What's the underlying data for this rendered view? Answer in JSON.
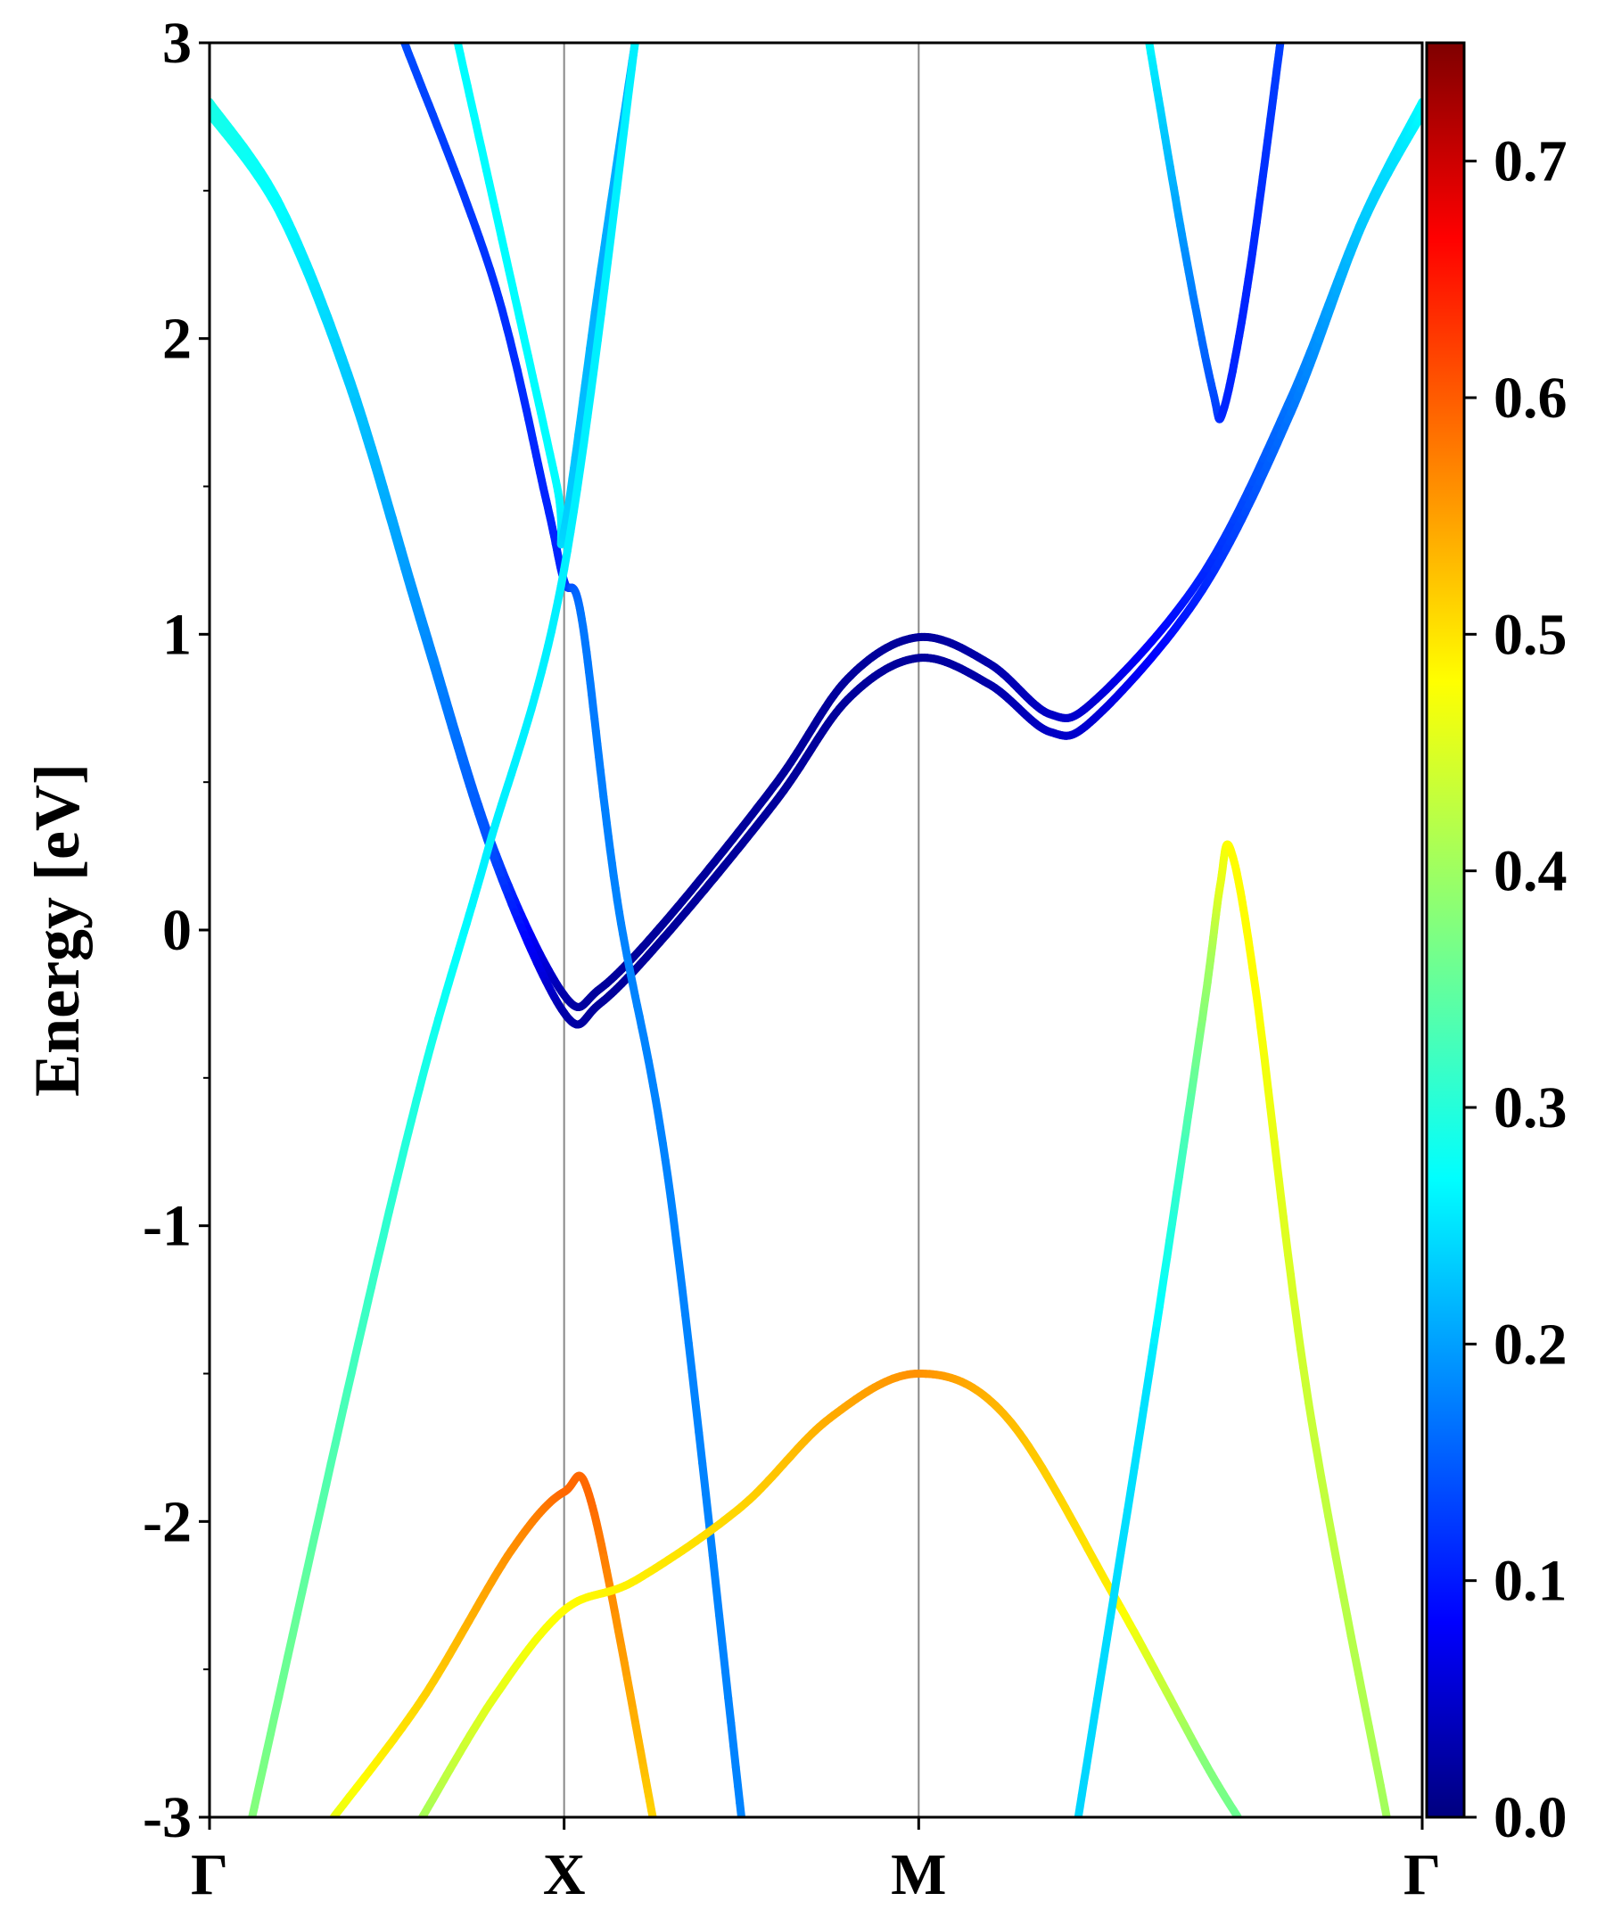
{
  "chart_data": {
    "type": "line",
    "title": "",
    "xlabel": "",
    "ylabel": "Energy [eV]",
    "ylim": [
      -3,
      3
    ],
    "kpoint_labels": [
      "Γ",
      "X",
      "M",
      "Γ"
    ],
    "kpoint_positions": [
      0,
      1,
      2,
      3.42
    ],
    "yticks": [
      "3",
      "2",
      "1",
      "0",
      "-1",
      "-2",
      "-3"
    ],
    "yticks_values": [
      3,
      2,
      1,
      0,
      -1,
      -2,
      -3
    ],
    "colorbar": {
      "colormap": "jet",
      "range": [
        0.0,
        0.75
      ],
      "ticks": [
        "0.0",
        "0.1",
        "0.2",
        "0.3",
        "0.4",
        "0.5",
        "0.6",
        "0.7"
      ],
      "tick_values": [
        0.0,
        0.1,
        0.2,
        0.3,
        0.4,
        0.5,
        0.6,
        0.7
      ]
    },
    "grid": false,
    "series": [
      {
        "points": [
          [
            0,
            2.8
          ],
          [
            0.2,
            2.45
          ],
          [
            0.4,
            1.85
          ],
          [
            0.6,
            1.05
          ],
          [
            0.8,
            0.28
          ],
          [
            1.0,
            -0.22
          ],
          [
            1.1,
            -0.2
          ],
          [
            1.3,
            0.05
          ],
          [
            1.6,
            0.5
          ],
          [
            1.8,
            0.85
          ],
          [
            2.0,
            0.99
          ],
          [
            2.2,
            0.9
          ],
          [
            2.37,
            0.73
          ],
          [
            2.5,
            0.78
          ],
          [
            2.8,
            1.2
          ],
          [
            3.05,
            1.8
          ],
          [
            3.25,
            2.4
          ],
          [
            3.42,
            2.8
          ]
        ],
        "weights": [
          0.3,
          0.28,
          0.24,
          0.2,
          0.15,
          0.03,
          0.02,
          0.02,
          0.02,
          0.02,
          0.02,
          0.03,
          0.05,
          0.06,
          0.12,
          0.18,
          0.24,
          0.28
        ]
      },
      {
        "points": [
          [
            0,
            2.76
          ],
          [
            0.2,
            2.42
          ],
          [
            0.4,
            1.82
          ],
          [
            0.6,
            1.02
          ],
          [
            0.8,
            0.25
          ],
          [
            1.0,
            -0.28
          ],
          [
            1.1,
            -0.25
          ],
          [
            1.3,
            0.0
          ],
          [
            1.6,
            0.44
          ],
          [
            1.8,
            0.78
          ],
          [
            2.0,
            0.92
          ],
          [
            2.2,
            0.83
          ],
          [
            2.37,
            0.67
          ],
          [
            2.5,
            0.72
          ],
          [
            2.8,
            1.15
          ],
          [
            3.05,
            1.75
          ],
          [
            3.25,
            2.38
          ],
          [
            3.42,
            2.76
          ]
        ],
        "weights": [
          0.3,
          0.28,
          0.24,
          0.2,
          0.15,
          0.03,
          0.02,
          0.02,
          0.02,
          0.02,
          0.02,
          0.03,
          0.05,
          0.06,
          0.12,
          0.18,
          0.24,
          0.28
        ]
      },
      {
        "points": [
          [
            0.55,
            3.0
          ],
          [
            0.8,
            2.2
          ],
          [
            0.95,
            1.45
          ],
          [
            1.0,
            1.18
          ],
          [
            1.05,
            1.05
          ],
          [
            1.15,
            0.1
          ],
          [
            1.3,
            -0.9
          ],
          [
            1.5,
            -3.0
          ]
        ],
        "weights": [
          0.15,
          0.13,
          0.12,
          0.12,
          0.18,
          0.19,
          0.19,
          0.19
        ]
      },
      {
        "points": [
          [
            0.7,
            3.0
          ],
          [
            0.85,
            2.2
          ],
          [
            0.98,
            1.5
          ],
          [
            1.0,
            1.35
          ],
          [
            1.1,
            2.2
          ],
          [
            1.2,
            3.0
          ]
        ],
        "weights": [
          0.28,
          0.28,
          0.28,
          0.25,
          0.22,
          0.22
        ]
      },
      {
        "points": [
          [
            0.12,
            -3.0
          ],
          [
            0.4,
            -1.5
          ],
          [
            0.6,
            -0.5
          ],
          [
            0.78,
            0.25
          ],
          [
            1.0,
            1.22
          ],
          [
            1.2,
            3.0
          ]
        ],
        "weights": [
          0.38,
          0.33,
          0.3,
          0.27,
          0.27,
          0.27
        ]
      },
      {
        "points": [
          [
            0.35,
            -3.0
          ],
          [
            0.6,
            -2.6
          ],
          [
            0.85,
            -2.1
          ],
          [
            1.0,
            -1.9
          ],
          [
            1.08,
            -1.95
          ],
          [
            1.25,
            -3.0
          ]
        ],
        "weights": [
          0.45,
          0.5,
          0.55,
          0.58,
          0.58,
          0.5
        ]
      },
      {
        "points": [
          [
            0.6,
            -3.0
          ],
          [
            0.8,
            -2.6
          ],
          [
            1.0,
            -2.3
          ],
          [
            1.2,
            -2.2
          ],
          [
            1.5,
            -1.95
          ],
          [
            1.75,
            -1.65
          ],
          [
            2.0,
            -1.5
          ],
          [
            2.25,
            -1.65
          ],
          [
            2.55,
            -2.25
          ],
          [
            2.8,
            -2.8
          ],
          [
            2.9,
            -3.0
          ]
        ],
        "weights": [
          0.4,
          0.45,
          0.47,
          0.48,
          0.5,
          0.53,
          0.55,
          0.52,
          0.48,
          0.38,
          0.36
        ]
      },
      {
        "points": [
          [
            2.45,
            -3.0
          ],
          [
            2.65,
            -1.5
          ],
          [
            2.8,
            -0.3
          ],
          [
            2.85,
            0.15
          ],
          [
            2.88,
            0.27
          ],
          [
            2.95,
            -0.2
          ],
          [
            3.1,
            -1.6
          ],
          [
            3.32,
            -3.0
          ]
        ],
        "weights": [
          0.25,
          0.26,
          0.38,
          0.45,
          0.47,
          0.47,
          0.43,
          0.4
        ]
      },
      {
        "points": [
          [
            2.65,
            3.0
          ],
          [
            2.75,
            2.3
          ],
          [
            2.83,
            1.82
          ],
          [
            2.86,
            1.76
          ],
          [
            2.93,
            2.2
          ],
          [
            3.02,
            3.0
          ]
        ],
        "weights": [
          0.28,
          0.2,
          0.15,
          0.12,
          0.12,
          0.14
        ]
      }
    ]
  }
}
